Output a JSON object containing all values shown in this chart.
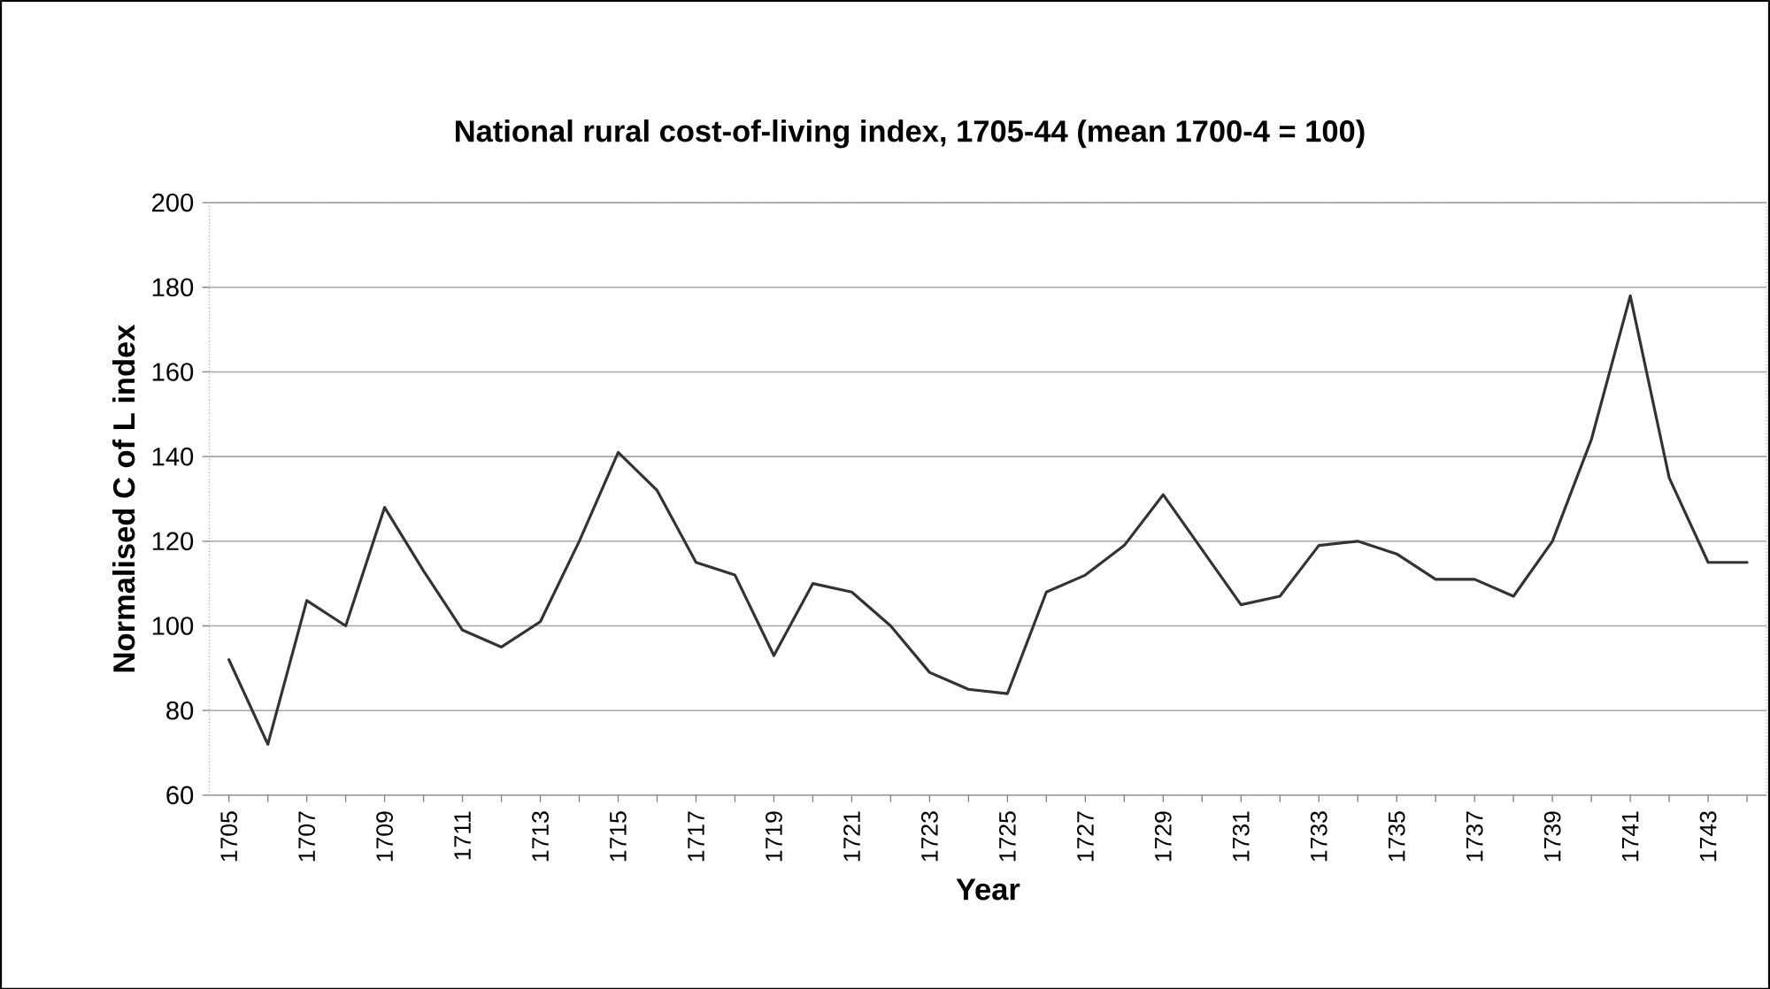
{
  "chart_data": {
    "type": "line",
    "title": "National rural cost-of-living index, 1705-44 (mean 1700-4 = 100)",
    "xlabel": "Year",
    "ylabel": "Normalised C of L index",
    "categories": [
      "1705",
      null,
      "1707",
      null,
      "1709",
      null,
      "1711",
      null,
      "1713",
      null,
      "1715",
      null,
      "1717",
      null,
      "1719",
      null,
      "1721",
      null,
      "1723",
      null,
      "1725",
      null,
      "1727",
      null,
      "1729",
      null,
      "1731",
      null,
      "1733",
      null,
      "1735",
      null,
      "1737",
      null,
      "1739",
      null,
      "1741",
      null,
      "1743",
      null
    ],
    "values": [
      92,
      72,
      106,
      100,
      128,
      113,
      99,
      95,
      101,
      120,
      141,
      132,
      115,
      112,
      93,
      110,
      108,
      100,
      89,
      85,
      84,
      108,
      112,
      119,
      131,
      118,
      105,
      107,
      119,
      120,
      117,
      111,
      111,
      107,
      120,
      144,
      178,
      135,
      115,
      115
    ],
    "color": "#333333",
    "ylim": [
      60,
      200
    ],
    "yticks": [
      60,
      80,
      100,
      120,
      140,
      160,
      180,
      200
    ],
    "grid": "y",
    "marker": "none",
    "line_style": "solid"
  }
}
